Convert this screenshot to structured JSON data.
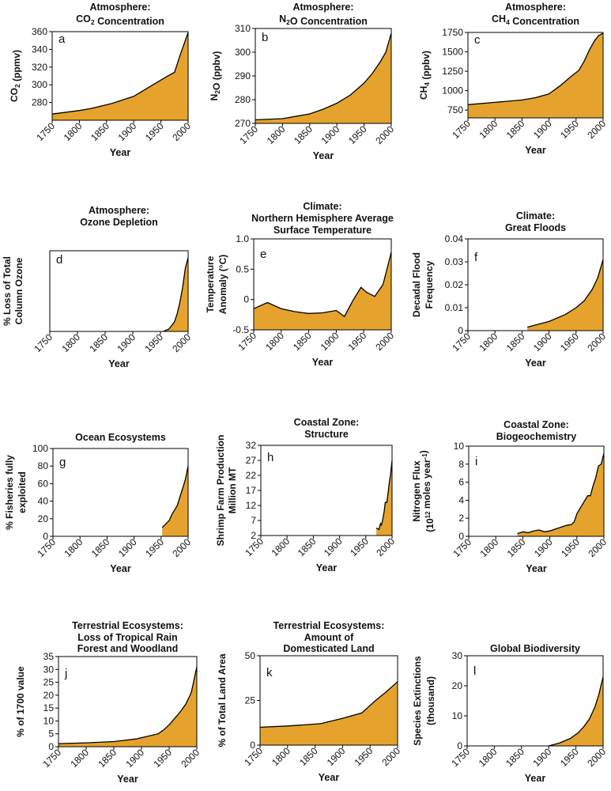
{
  "chart_data": [
    {
      "id": "a",
      "type": "area",
      "panel_label": "a",
      "title": [
        "Atmosphere:",
        "CO2 Concentration"
      ],
      "ylabel": [
        "CO2 (ppmv)"
      ],
      "xlabel": "Year",
      "xlim": [
        1750,
        2000
      ],
      "ylim": [
        260,
        360
      ],
      "xticks": [
        1750,
        1800,
        1850,
        1900,
        1950,
        2000
      ],
      "yticks": [
        280,
        300,
        320,
        340,
        360
      ],
      "x": [
        1750,
        1800,
        1820,
        1860,
        1900,
        1930,
        1960,
        1975,
        1985,
        2000
      ],
      "y": [
        267,
        271,
        273,
        279,
        287,
        298,
        309,
        314,
        333,
        359
      ]
    },
    {
      "id": "b",
      "type": "area",
      "panel_label": "b",
      "title": [
        "Atmosphere:",
        "N2O Concentration"
      ],
      "ylabel": [
        "N2O (ppbv)"
      ],
      "xlabel": "Year",
      "xlim": [
        1750,
        2000
      ],
      "ylim": [
        270,
        310
      ],
      "xticks": [
        1750,
        1800,
        1850,
        1900,
        1950,
        2000
      ],
      "yticks": [
        270,
        280,
        290,
        300,
        310
      ],
      "x": [
        1750,
        1800,
        1850,
        1875,
        1900,
        1925,
        1950,
        1965,
        1980,
        1990,
        2000
      ],
      "y": [
        271.5,
        272,
        274,
        276,
        278.5,
        282,
        287,
        291,
        296,
        300,
        308
      ]
    },
    {
      "id": "c",
      "type": "area",
      "panel_label": "c",
      "title": [
        "Atmosphere:",
        "CH4 Concentration"
      ],
      "ylabel": [
        "CH4 (ppbv)"
      ],
      "xlabel": "Year",
      "xlim": [
        1750,
        2000
      ],
      "ylim": [
        650,
        1750
      ],
      "xticks": [
        1750,
        1800,
        1850,
        1900,
        1950,
        2000
      ],
      "yticks": [
        750,
        1000,
        1250,
        1500,
        1750
      ],
      "x": [
        1750,
        1800,
        1850,
        1875,
        1900,
        1920,
        1940,
        1955,
        1965,
        1975,
        1985,
        1992,
        2000
      ],
      "y": [
        820,
        850,
        880,
        910,
        960,
        1060,
        1180,
        1260,
        1380,
        1530,
        1650,
        1710,
        1740
      ]
    },
    {
      "id": "d",
      "type": "area",
      "panel_label": "d",
      "title": [
        "Atmosphere:",
        "Ozone Depletion"
      ],
      "ylabel": [
        "% Loss of Total",
        "Column Ozone"
      ],
      "xlabel": "Year",
      "xlim": [
        1750,
        2000
      ],
      "ylim": [
        0,
        70
      ],
      "xticks": [
        1750,
        1800,
        1850,
        1900,
        1950,
        2000
      ],
      "yticks": [],
      "x": [
        1955,
        1965,
        1975,
        1980,
        1985,
        1990,
        1995,
        2000
      ],
      "y": [
        0,
        2,
        8,
        15,
        25,
        38,
        55,
        64
      ]
    },
    {
      "id": "e",
      "type": "area",
      "panel_label": "e",
      "title": [
        "Climate:",
        "Northern Hemisphere Average",
        "Surface Temperature"
      ],
      "ylabel": [
        "Temperature",
        "Anomaly (°C)"
      ],
      "xlabel": "Year",
      "xlim": [
        1750,
        2000
      ],
      "ylim": [
        -0.5,
        1.0
      ],
      "xticks": [
        1750,
        1800,
        1850,
        1900,
        1950,
        2000
      ],
      "yticks": [
        "-0.5",
        "0",
        "0.5",
        "1.0"
      ],
      "x": [
        1750,
        1775,
        1800,
        1825,
        1850,
        1875,
        1900,
        1915,
        1930,
        1945,
        1955,
        1970,
        1985,
        2000
      ],
      "y": [
        -0.15,
        -0.05,
        -0.15,
        -0.2,
        -0.23,
        -0.22,
        -0.18,
        -0.28,
        -0.02,
        0.2,
        0.12,
        0.05,
        0.25,
        0.78
      ]
    },
    {
      "id": "f",
      "type": "area",
      "panel_label": "f",
      "title": [
        "Climate:",
        "Great Floods"
      ],
      "ylabel": [
        "Decadal Flood",
        "Frequency"
      ],
      "xlabel": "Year",
      "xlim": [
        1750,
        2000
      ],
      "ylim": [
        0,
        0.04
      ],
      "xticks": [
        1750,
        1800,
        1850,
        1900,
        1950,
        2000
      ],
      "yticks": [
        "0",
        "0.01",
        "0.02",
        "0.03",
        "0.04"
      ],
      "x": [
        1860,
        1900,
        1930,
        1950,
        1965,
        1980,
        1990,
        2000
      ],
      "y": [
        0.0015,
        0.004,
        0.007,
        0.01,
        0.013,
        0.018,
        0.023,
        0.031
      ]
    },
    {
      "id": "g",
      "type": "area",
      "panel_label": "g",
      "title": [
        "Ocean Ecosystems"
      ],
      "ylabel": [
        "% Fisheries fully",
        "exploited"
      ],
      "xlabel": "Year",
      "xlim": [
        1750,
        2000
      ],
      "ylim": [
        0,
        100
      ],
      "xticks": [
        1750,
        1800,
        1850,
        1900,
        1950,
        2000
      ],
      "yticks": [
        0,
        20,
        40,
        60,
        80,
        100
      ],
      "x": [
        1952,
        1960,
        1965,
        1970,
        1975,
        1980,
        1985,
        1990,
        1995,
        2000
      ],
      "y": [
        10,
        15,
        18,
        25,
        30,
        35,
        45,
        55,
        65,
        80
      ]
    },
    {
      "id": "h",
      "type": "area",
      "panel_label": "h",
      "title": [
        "Coastal Zone:",
        "Structure"
      ],
      "ylabel": [
        "Shrimp Farm Production",
        "Million MT"
      ],
      "xlabel": "Year",
      "xlim": [
        1750,
        2000
      ],
      "ylim": [
        2,
        32
      ],
      "xticks": [
        1750,
        1800,
        1850,
        1900,
        1950,
        2000
      ],
      "yticks": [
        2,
        7,
        12,
        17,
        22,
        27,
        32
      ],
      "x": [
        1970,
        1975,
        1978,
        1980,
        1983,
        1985,
        1987,
        1990,
        1993,
        1995,
        1997,
        2000
      ],
      "y": [
        4.5,
        4,
        6,
        5.5,
        8,
        10,
        13,
        13,
        17,
        20,
        22,
        27
      ]
    },
    {
      "id": "i",
      "type": "area",
      "panel_label": "i",
      "title": [
        "Coastal Zone:",
        "Biogeochemistry"
      ],
      "ylabel": [
        "Nitrogen Flux",
        "(10^12 moles year^-1)"
      ],
      "xlabel": "Year",
      "xlim": [
        1750,
        2000
      ],
      "ylim": [
        0,
        10
      ],
      "xticks": [
        1750,
        1800,
        1850,
        1900,
        1950,
        2000
      ],
      "yticks": [
        0,
        2,
        4,
        6,
        8,
        10
      ],
      "x": [
        1840,
        1850,
        1860,
        1870,
        1880,
        1890,
        1900,
        1910,
        1920,
        1930,
        1940,
        1945,
        1950,
        1960,
        1970,
        1975,
        1980,
        1985,
        1990,
        1995,
        2000
      ],
      "y": [
        0.3,
        0.5,
        0.4,
        0.6,
        0.7,
        0.5,
        0.6,
        0.8,
        1.0,
        1.2,
        1.3,
        1.6,
        2.5,
        3.5,
        4.5,
        4.5,
        5.6,
        6.5,
        7.8,
        8.0,
        9.2
      ]
    },
    {
      "id": "j",
      "type": "area",
      "panel_label": "j",
      "title": [
        "Terrestrial Ecosystems:",
        "Loss of Tropical Rain",
        "Forest and Woodland"
      ],
      "ylabel": [
        "% of 1700 value"
      ],
      "xlabel": "Year",
      "xlim": [
        1750,
        2000
      ],
      "ylim": [
        0,
        35
      ],
      "xticks": [
        1750,
        1800,
        1850,
        1900,
        1950,
        2000
      ],
      "yticks": [
        0,
        5,
        10,
        15,
        20,
        25,
        30,
        35
      ],
      "x": [
        1750,
        1800,
        1850,
        1870,
        1890,
        1910,
        1930,
        1940,
        1950,
        1960,
        1970,
        1980,
        1990,
        2000
      ],
      "y": [
        1.2,
        1.5,
        2,
        2.5,
        3,
        4,
        5,
        6.5,
        8.5,
        11,
        13.5,
        16.5,
        21,
        31
      ]
    },
    {
      "id": "k",
      "type": "area",
      "panel_label": "k",
      "title": [
        "Terrestrial Ecosystems:",
        "Amount of",
        "Domesticated Land"
      ],
      "ylabel": [
        "% of Total Land Area"
      ],
      "xlabel": "Year",
      "xlim": [
        1750,
        2000
      ],
      "ylim": [
        0,
        50
      ],
      "xticks": [
        1750,
        1800,
        1850,
        1900,
        1950,
        2000
      ],
      "yticks": [
        0,
        25,
        50
      ],
      "x": [
        1750,
        1800,
        1860,
        1900,
        1935,
        1960,
        1980,
        2000
      ],
      "y": [
        10,
        10.7,
        12,
        15,
        18,
        25,
        30,
        35.5
      ]
    },
    {
      "id": "l",
      "type": "area",
      "panel_label": "l",
      "title": [
        "Global Biodiversity"
      ],
      "ylabel": [
        "Species Extinctions",
        "(thousand)"
      ],
      "xlabel": "Year",
      "xlim": [
        1750,
        2000
      ],
      "ylim": [
        0,
        30
      ],
      "xticks": [
        1750,
        1800,
        1850,
        1900,
        1950,
        2000
      ],
      "yticks": [
        0,
        10,
        20,
        30
      ],
      "x": [
        1900,
        1920,
        1940,
        1955,
        1965,
        1975,
        1985,
        1992,
        2000
      ],
      "y": [
        0,
        1,
        2.5,
        4.5,
        6.5,
        9,
        13,
        17,
        23
      ]
    }
  ],
  "style": {
    "fill": "#E5A32E",
    "stroke": "#000000"
  }
}
